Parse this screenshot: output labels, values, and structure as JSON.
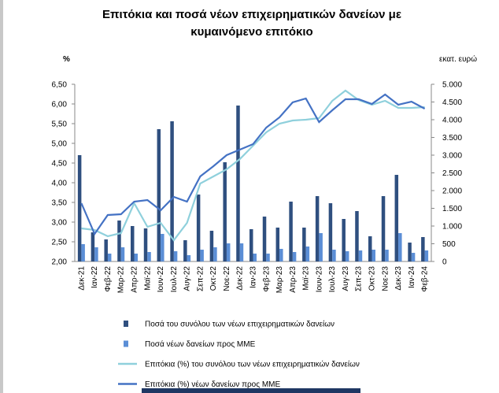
{
  "chart_data": {
    "type": "bar-line",
    "title": "Επιτόκια και ποσά νέων επιχειρηματικών δανείων με κυμαινόμενο επιτόκιο",
    "y_label": "%",
    "y2_label": "εκατ. ευρώ",
    "categories": [
      "Δεκ-21",
      "Ιαν-22",
      "Φεβ-22",
      "Μαρ-22",
      "Απρ-22",
      "Μαϊ-22",
      "Ιουν-22",
      "Ιουλ-22",
      "Αυγ-22",
      "Σεπ-22",
      "Οκτ-22",
      "Νοε-22",
      "Δεκ-22",
      "Ιαν-23",
      "Φεβ-23",
      "Μαρ-23",
      "Απρ-23",
      "Μαϊ-23",
      "Ιουν-23",
      "Ιουλ-23",
      "Αυγ-23",
      "Σεπ-23",
      "Οκτ-23",
      "Νοε-23",
      "Δεκ-23",
      "Ιαν-24",
      "Φεβ-24"
    ],
    "series": [
      {
        "name": "Ποσά του συνόλου των νέων επιχειρηματικών δανείων",
        "kind": "bar",
        "axis": "y2",
        "color": "#2f4f7f",
        "values": [
          3000,
          822,
          622,
          1156,
          1000,
          933,
          3733,
          3956,
          600,
          1889,
          867,
          2800,
          4400,
          911,
          1267,
          956,
          1689,
          956,
          1844,
          1644,
          1200,
          1422,
          711,
          1844,
          2444,
          533,
          689
        ]
      },
      {
        "name": "Ποσά νέων δανείων προς ΜΜΕ",
        "kind": "bar",
        "axis": "y2",
        "color": "#5b8ed6",
        "values": [
          489,
          400,
          222,
          400,
          222,
          267,
          778,
          289,
          178,
          333,
          400,
          511,
          511,
          222,
          222,
          356,
          267,
          422,
          800,
          333,
          289,
          311,
          333,
          333,
          800,
          244,
          311
        ]
      },
      {
        "name": "Επιτόκια (%) του συνόλου των νέων επιχειρηματικών δανείων",
        "kind": "line",
        "axis": "y",
        "color": "#8fd0dc",
        "values": [
          2.84,
          2.8,
          2.64,
          2.72,
          3.48,
          2.88,
          2.98,
          2.54,
          2.98,
          3.98,
          4.16,
          4.34,
          4.6,
          4.94,
          5.28,
          5.5,
          5.58,
          5.6,
          5.64,
          6.08,
          6.34,
          6.1,
          5.98,
          6.08,
          5.9,
          5.9,
          5.92
        ]
      },
      {
        "name": "Επιτόκια (%) νέων δανείων προς ΜΜΕ",
        "kind": "line",
        "axis": "y",
        "color": "#4472c4",
        "values": [
          3.48,
          2.7,
          3.18,
          3.2,
          3.52,
          3.56,
          3.3,
          3.64,
          3.52,
          4.16,
          4.42,
          4.7,
          4.84,
          4.98,
          5.4,
          5.66,
          6.04,
          6.14,
          5.54,
          5.84,
          6.12,
          6.12,
          6.0,
          6.24,
          5.98,
          6.06,
          5.88
        ]
      }
    ],
    "ylim": [
      2.0,
      6.5
    ],
    "yticks": [
      {
        "value": 2.0,
        "label": "2,00"
      },
      {
        "value": 2.5,
        "label": "2,50"
      },
      {
        "value": 3.0,
        "label": "3,00"
      },
      {
        "value": 3.5,
        "label": "3,50"
      },
      {
        "value": 4.0,
        "label": "4,00"
      },
      {
        "value": 4.5,
        "label": "4,50"
      },
      {
        "value": 5.0,
        "label": "5,00"
      },
      {
        "value": 5.5,
        "label": "5,50"
      },
      {
        "value": 6.0,
        "label": "6,00"
      },
      {
        "value": 6.5,
        "label": "6,50"
      }
    ],
    "y2lim": [
      0,
      5000
    ],
    "y2ticks": [
      0,
      500,
      {
        "value": 1000,
        "label": "1.000"
      },
      {
        "value": 1500,
        "label": "1.500"
      },
      {
        "value": 2000,
        "label": "2.000"
      },
      {
        "value": 2500,
        "label": "2.500"
      },
      {
        "value": 3000,
        "label": "3.000"
      },
      {
        "value": 3500,
        "label": "3.500"
      },
      {
        "value": 4000,
        "label": "4.000"
      },
      {
        "value": 4500,
        "label": "4.500"
      },
      {
        "value": 5000,
        "label": "5.000"
      }
    ],
    "grid": false
  }
}
